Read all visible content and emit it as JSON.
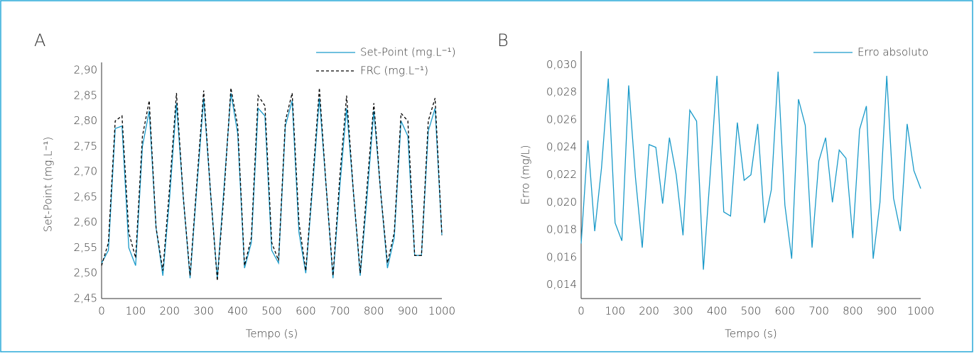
{
  "chart_data": [
    {
      "type": "line",
      "panel_label": "A",
      "x_label": "Tempo (s)",
      "y_label": "Set-Point (mg.L⁻¹)",
      "x": [
        0,
        20,
        40,
        60,
        80,
        100,
        120,
        140,
        160,
        180,
        200,
        220,
        240,
        260,
        280,
        300,
        320,
        340,
        360,
        380,
        400,
        420,
        440,
        460,
        480,
        500,
        520,
        540,
        560,
        580,
        600,
        620,
        640,
        660,
        680,
        700,
        720,
        740,
        760,
        780,
        800,
        820,
        840,
        860,
        880,
        900,
        920,
        940,
        960,
        980,
        1000
      ],
      "series": [
        {
          "name": "Set-Point (mg.L⁻¹)",
          "color": "#1a9ac9",
          "dashed": false,
          "values": [
            2.52,
            2.545,
            2.785,
            2.79,
            2.55,
            2.515,
            2.75,
            2.82,
            2.59,
            2.495,
            2.65,
            2.835,
            2.65,
            2.49,
            2.67,
            2.845,
            2.66,
            2.49,
            2.67,
            2.855,
            2.775,
            2.51,
            2.56,
            2.825,
            2.81,
            2.545,
            2.52,
            2.79,
            2.84,
            2.58,
            2.5,
            2.67,
            2.845,
            2.67,
            2.49,
            2.67,
            2.825,
            2.66,
            2.495,
            2.65,
            2.82,
            2.66,
            2.51,
            2.57,
            2.8,
            2.77,
            2.535,
            2.535,
            2.78,
            2.825,
            2.575
          ]
        },
        {
          "name": "FRC (mg.L⁻¹)",
          "color": "#000000",
          "dashed": true,
          "values": [
            2.515,
            2.56,
            2.8,
            2.81,
            2.58,
            2.53,
            2.77,
            2.84,
            2.59,
            2.505,
            2.67,
            2.855,
            2.65,
            2.495,
            2.68,
            2.86,
            2.66,
            2.485,
            2.66,
            2.865,
            2.79,
            2.515,
            2.57,
            2.85,
            2.83,
            2.56,
            2.525,
            2.8,
            2.855,
            2.6,
            2.505,
            2.68,
            2.865,
            2.67,
            2.495,
            2.69,
            2.85,
            2.66,
            2.5,
            2.67,
            2.835,
            2.66,
            2.52,
            2.58,
            2.815,
            2.8,
            2.535,
            2.535,
            2.8,
            2.845,
            2.575
          ]
        }
      ],
      "xlim": [
        0,
        1000
      ],
      "xticks": [
        0,
        100,
        200,
        300,
        400,
        500,
        600,
        700,
        800,
        900,
        1000
      ],
      "ylim": [
        2.45,
        2.9
      ],
      "yticks": [
        {
          "value": 2.45,
          "label": "2,45"
        },
        {
          "value": 2.5,
          "label": "2,50"
        },
        {
          "value": 2.55,
          "label": "2,55"
        },
        {
          "value": 2.6,
          "label": "2,60"
        },
        {
          "value": 2.65,
          "label": "2,65"
        },
        {
          "value": 2.7,
          "label": "2,70"
        },
        {
          "value": 2.75,
          "label": "2,75"
        },
        {
          "value": 2.8,
          "label": "2,80"
        },
        {
          "value": 2.85,
          "label": "2,85"
        },
        {
          "value": 2.9,
          "label": "2,90"
        }
      ],
      "grid": false,
      "legend": "upper right"
    },
    {
      "type": "line",
      "panel_label": "B",
      "x_label": "Tempo (s)",
      "y_label": "Erro (mg/L)",
      "x": [
        0,
        20,
        40,
        60,
        80,
        100,
        120,
        140,
        160,
        180,
        200,
        220,
        240,
        260,
        280,
        300,
        320,
        340,
        360,
        380,
        400,
        420,
        440,
        460,
        480,
        500,
        520,
        540,
        560,
        580,
        600,
        620,
        640,
        660,
        680,
        700,
        720,
        740,
        760,
        780,
        800,
        820,
        840,
        860,
        880,
        900,
        920,
        940,
        960,
        980,
        1000
      ],
      "series": [
        {
          "name": "Erro absoluto",
          "color": "#1a9ac9",
          "dashed": false,
          "values": [
            0.017,
            0.0245,
            0.0179,
            0.0225,
            0.029,
            0.0185,
            0.0172,
            0.0285,
            0.0218,
            0.0167,
            0.0242,
            0.024,
            0.0199,
            0.0247,
            0.022,
            0.0176,
            0.0267,
            0.0259,
            0.0151,
            0.022,
            0.0292,
            0.0193,
            0.019,
            0.0258,
            0.0216,
            0.022,
            0.0257,
            0.0185,
            0.0209,
            0.0295,
            0.0198,
            0.0159,
            0.0275,
            0.0256,
            0.0167,
            0.023,
            0.0247,
            0.02,
            0.0238,
            0.0232,
            0.0174,
            0.0253,
            0.027,
            0.0159,
            0.02,
            0.0292,
            0.0203,
            0.0179,
            0.0257,
            0.0223,
            0.021
          ]
        }
      ],
      "xlim": [
        0,
        1000
      ],
      "xticks": [
        0,
        100,
        200,
        300,
        400,
        500,
        600,
        700,
        800,
        900,
        1000
      ],
      "ylim": [
        0.013,
        0.031
      ],
      "yticks": [
        {
          "value": 0.014,
          "label": "0,014"
        },
        {
          "value": 0.016,
          "label": "0,016"
        },
        {
          "value": 0.018,
          "label": "0,018"
        },
        {
          "value": 0.02,
          "label": "0,020"
        },
        {
          "value": 0.022,
          "label": "0,022"
        },
        {
          "value": 0.024,
          "label": "0,024"
        },
        {
          "value": 0.026,
          "label": "0,026"
        },
        {
          "value": 0.028,
          "label": "0,028"
        },
        {
          "value": 0.03,
          "label": "0,030"
        }
      ],
      "grid": false,
      "legend": "upper right"
    }
  ]
}
